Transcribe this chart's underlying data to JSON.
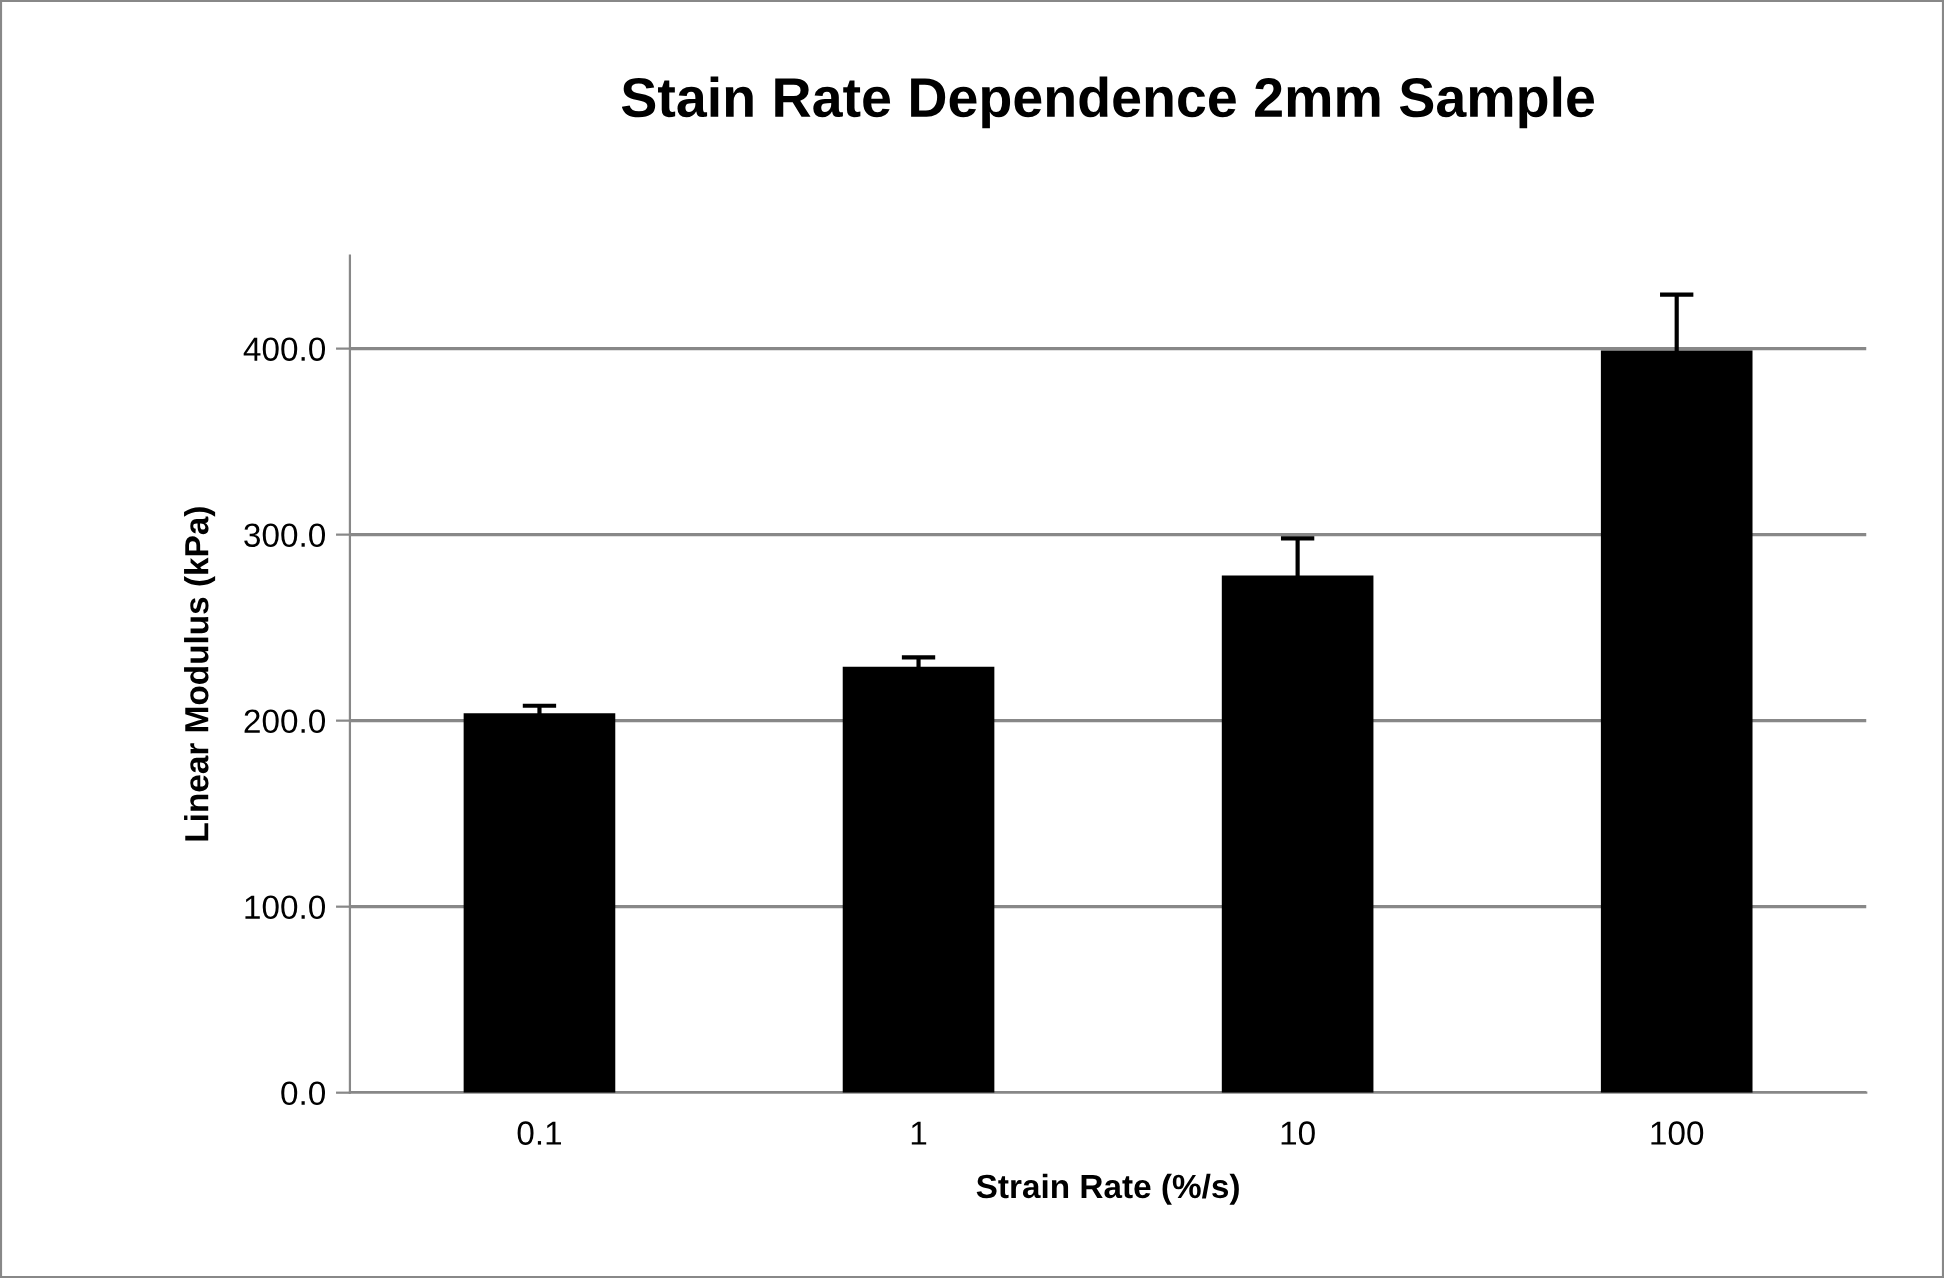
{
  "chart_data": {
    "type": "bar",
    "title": "Stain Rate Dependence 2mm Sample",
    "xlabel": "Strain Rate (%/s)",
    "ylabel": "Linear Modulus (kPa)",
    "categories": [
      "0.1",
      "1",
      "10",
      "100"
    ],
    "values": [
      204,
      229,
      278,
      399
    ],
    "errors": [
      4,
      5,
      20,
      30
    ],
    "color": "#000000",
    "ylim": [
      0,
      450
    ],
    "yticks": [
      {
        "value": 0,
        "label": "0.0"
      },
      {
        "value": 100,
        "label": "100.0"
      },
      {
        "value": 200,
        "label": "200.0"
      },
      {
        "value": 300,
        "label": "300.0"
      },
      {
        "value": 400,
        "label": "400.0"
      }
    ],
    "grid": "y",
    "legend": false
  }
}
